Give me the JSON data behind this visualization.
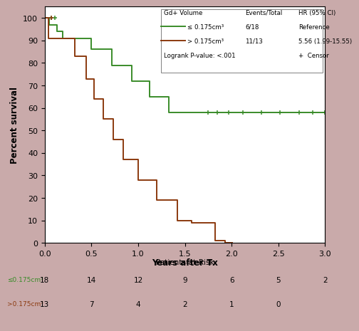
{
  "xlabel": "Years after Tx",
  "ylabel": "Percent survival",
  "xlim": [
    0.0,
    3.0
  ],
  "ylim": [
    0,
    105
  ],
  "xticks": [
    0.0,
    0.5,
    1.0,
    1.5,
    2.0,
    2.5,
    3.0
  ],
  "yticks": [
    0,
    10,
    20,
    30,
    40,
    50,
    60,
    70,
    80,
    90,
    100
  ],
  "fig_facecolor": "#c9aaaa",
  "plot_facecolor": "#ffffff",
  "green_color": "#3a8c2a",
  "brown_color": "#8B3A0F",
  "green_km_x": [
    0.0,
    0.05,
    0.05,
    0.13,
    0.13,
    0.19,
    0.19,
    0.5,
    0.5,
    0.72,
    0.72,
    0.93,
    0.93,
    1.12,
    1.12,
    1.33,
    1.33,
    1.62,
    1.62,
    3.0
  ],
  "green_km_y": [
    100,
    100,
    97,
    97,
    94,
    94,
    91,
    91,
    86,
    86,
    79,
    79,
    72,
    72,
    65,
    65,
    58,
    58,
    58,
    58
  ],
  "brown_km_x": [
    0.0,
    0.04,
    0.04,
    0.32,
    0.32,
    0.44,
    0.44,
    0.53,
    0.53,
    0.63,
    0.63,
    0.73,
    0.73,
    0.84,
    0.84,
    1.0,
    1.0,
    1.2,
    1.2,
    1.42,
    1.42,
    1.57,
    1.57,
    1.72,
    1.72,
    1.82,
    1.82,
    1.93,
    1.93,
    2.01,
    2.01
  ],
  "brown_km_y": [
    100,
    100,
    91,
    91,
    83,
    83,
    73,
    73,
    64,
    64,
    55,
    55,
    46,
    46,
    37,
    37,
    28,
    28,
    19,
    19,
    10,
    10,
    9,
    9,
    9,
    9,
    1,
    1,
    0,
    0,
    0
  ],
  "green_censors_x": [
    0.07,
    0.11,
    1.75,
    1.85,
    1.97,
    2.12,
    2.32,
    2.52,
    2.72,
    2.87,
    3.0
  ],
  "green_censors_y": [
    100,
    100,
    58,
    58,
    58,
    58,
    58,
    58,
    58,
    58,
    58
  ],
  "brown_censors_x": [
    0.07
  ],
  "brown_censors_y": [
    100
  ],
  "label_green": "≤ 0.175cm³",
  "label_brown": "> 0.175cm³",
  "events_green": "6/18",
  "events_brown": "11/13",
  "hr_green": "Reference",
  "hr_brown": "5.56 (1.99-15.55)",
  "logrank": "Logrank P-value: <.001",
  "censor_label": "+  Censor",
  "at_risk_x_positions": [
    0.0,
    0.5,
    1.0,
    1.5,
    2.0,
    2.5,
    3.0
  ],
  "at_risk_green": [
    18,
    14,
    12,
    9,
    6,
    5,
    2
  ],
  "at_risk_brown": [
    13,
    7,
    4,
    2,
    1,
    0,
    null
  ]
}
